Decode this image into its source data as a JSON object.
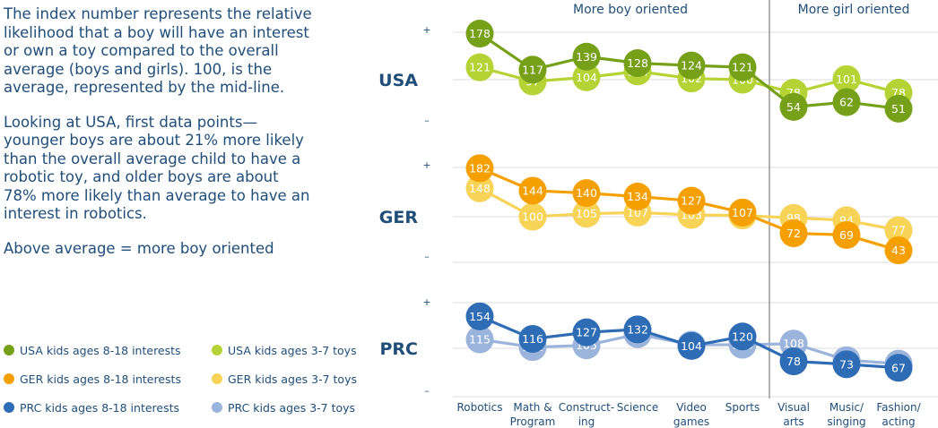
{
  "description": {
    "p1": "The index number represents the relative likelihood that a boy will have an interest or own a toy compared to the overall average (boys and girls). 100, is the average, represented by the mid-line.",
    "p2": "Looking at USA, first data points— younger boys are about 21% more likely than the overall average child to have a robotic toy, and older boys are about 78% more likely than average to have an interest in robotics.",
    "p3": "Above average = more boy oriented"
  },
  "legend": [
    {
      "label": "USA kids ages 8-18 interests",
      "color": "#76a017"
    },
    {
      "label": "USA kids ages 3-7 toys",
      "color": "#b5d334"
    },
    {
      "label": "GER kids ages 8-18 interests",
      "color": "#f5a000"
    },
    {
      "label": "GER kids ages 3-7 toys",
      "color": "#f7d358"
    },
    {
      "label": "PRC kids ages 8-18 interests",
      "color": "#2e6db5"
    },
    {
      "label": "PRC kids ages 3-7 toys",
      "color": "#9ab4dc"
    }
  ],
  "chart_data": {
    "type": "line",
    "section_labels": [
      "More boy oriented",
      "More girl oriented"
    ],
    "categories": [
      "Robotics",
      "Math & Program",
      "Construct- ing",
      "Science",
      "Video games",
      "Sports",
      "Visual arts",
      "Music/ singing",
      "Fashion/ acting"
    ],
    "category_lines": [
      [
        "Robotics"
      ],
      [
        "Math &",
        "Program"
      ],
      [
        "Construct-",
        "ing"
      ],
      [
        "Science"
      ],
      [
        "Video",
        "games"
      ],
      [
        "Sports"
      ],
      [
        "Visual",
        "arts"
      ],
      [
        "Music/",
        "singing"
      ],
      [
        "Fashion/",
        "acting"
      ]
    ],
    "panels": [
      {
        "label": "USA",
        "plus": "+",
        "minus": "–",
        "series": [
          {
            "name": "USA kids ages 3-7 toys",
            "color": "#b5d334",
            "values": [
              121,
              97,
              104,
              114,
              102,
              100,
              78,
              101,
              78
            ]
          },
          {
            "name": "USA kids ages 8-18 interests",
            "color": "#76a017",
            "values": [
              178,
              117,
              139,
              128,
              124,
              121,
              54,
              62,
              51
            ]
          }
        ]
      },
      {
        "label": "GER",
        "plus": "+",
        "minus": "–",
        "series": [
          {
            "name": "GER kids ages 3-7 toys",
            "color": "#f7d358",
            "values": [
              148,
              100,
              105,
              107,
              103,
              102,
              98,
              94,
              77
            ]
          },
          {
            "name": "GER kids ages 8-18 interests",
            "color": "#f5a000",
            "values": [
              182,
              144,
              140,
              134,
              127,
              107,
              72,
              69,
              43
            ]
          }
        ]
      },
      {
        "label": "PRC",
        "plus": "+",
        "minus": "–",
        "series": [
          {
            "name": "PRC kids ages 3-7 toys",
            "color": "#9ab4dc",
            "values": [
              115,
              102,
              105,
              124,
              106,
              106,
              108,
              80,
              74
            ]
          },
          {
            "name": "PRC kids ages 8-18 interests",
            "color": "#2e6db5",
            "values": [
              154,
              116,
              127,
              132,
              104,
              120,
              78,
              73,
              67
            ]
          }
        ]
      }
    ],
    "baseline": 100
  }
}
